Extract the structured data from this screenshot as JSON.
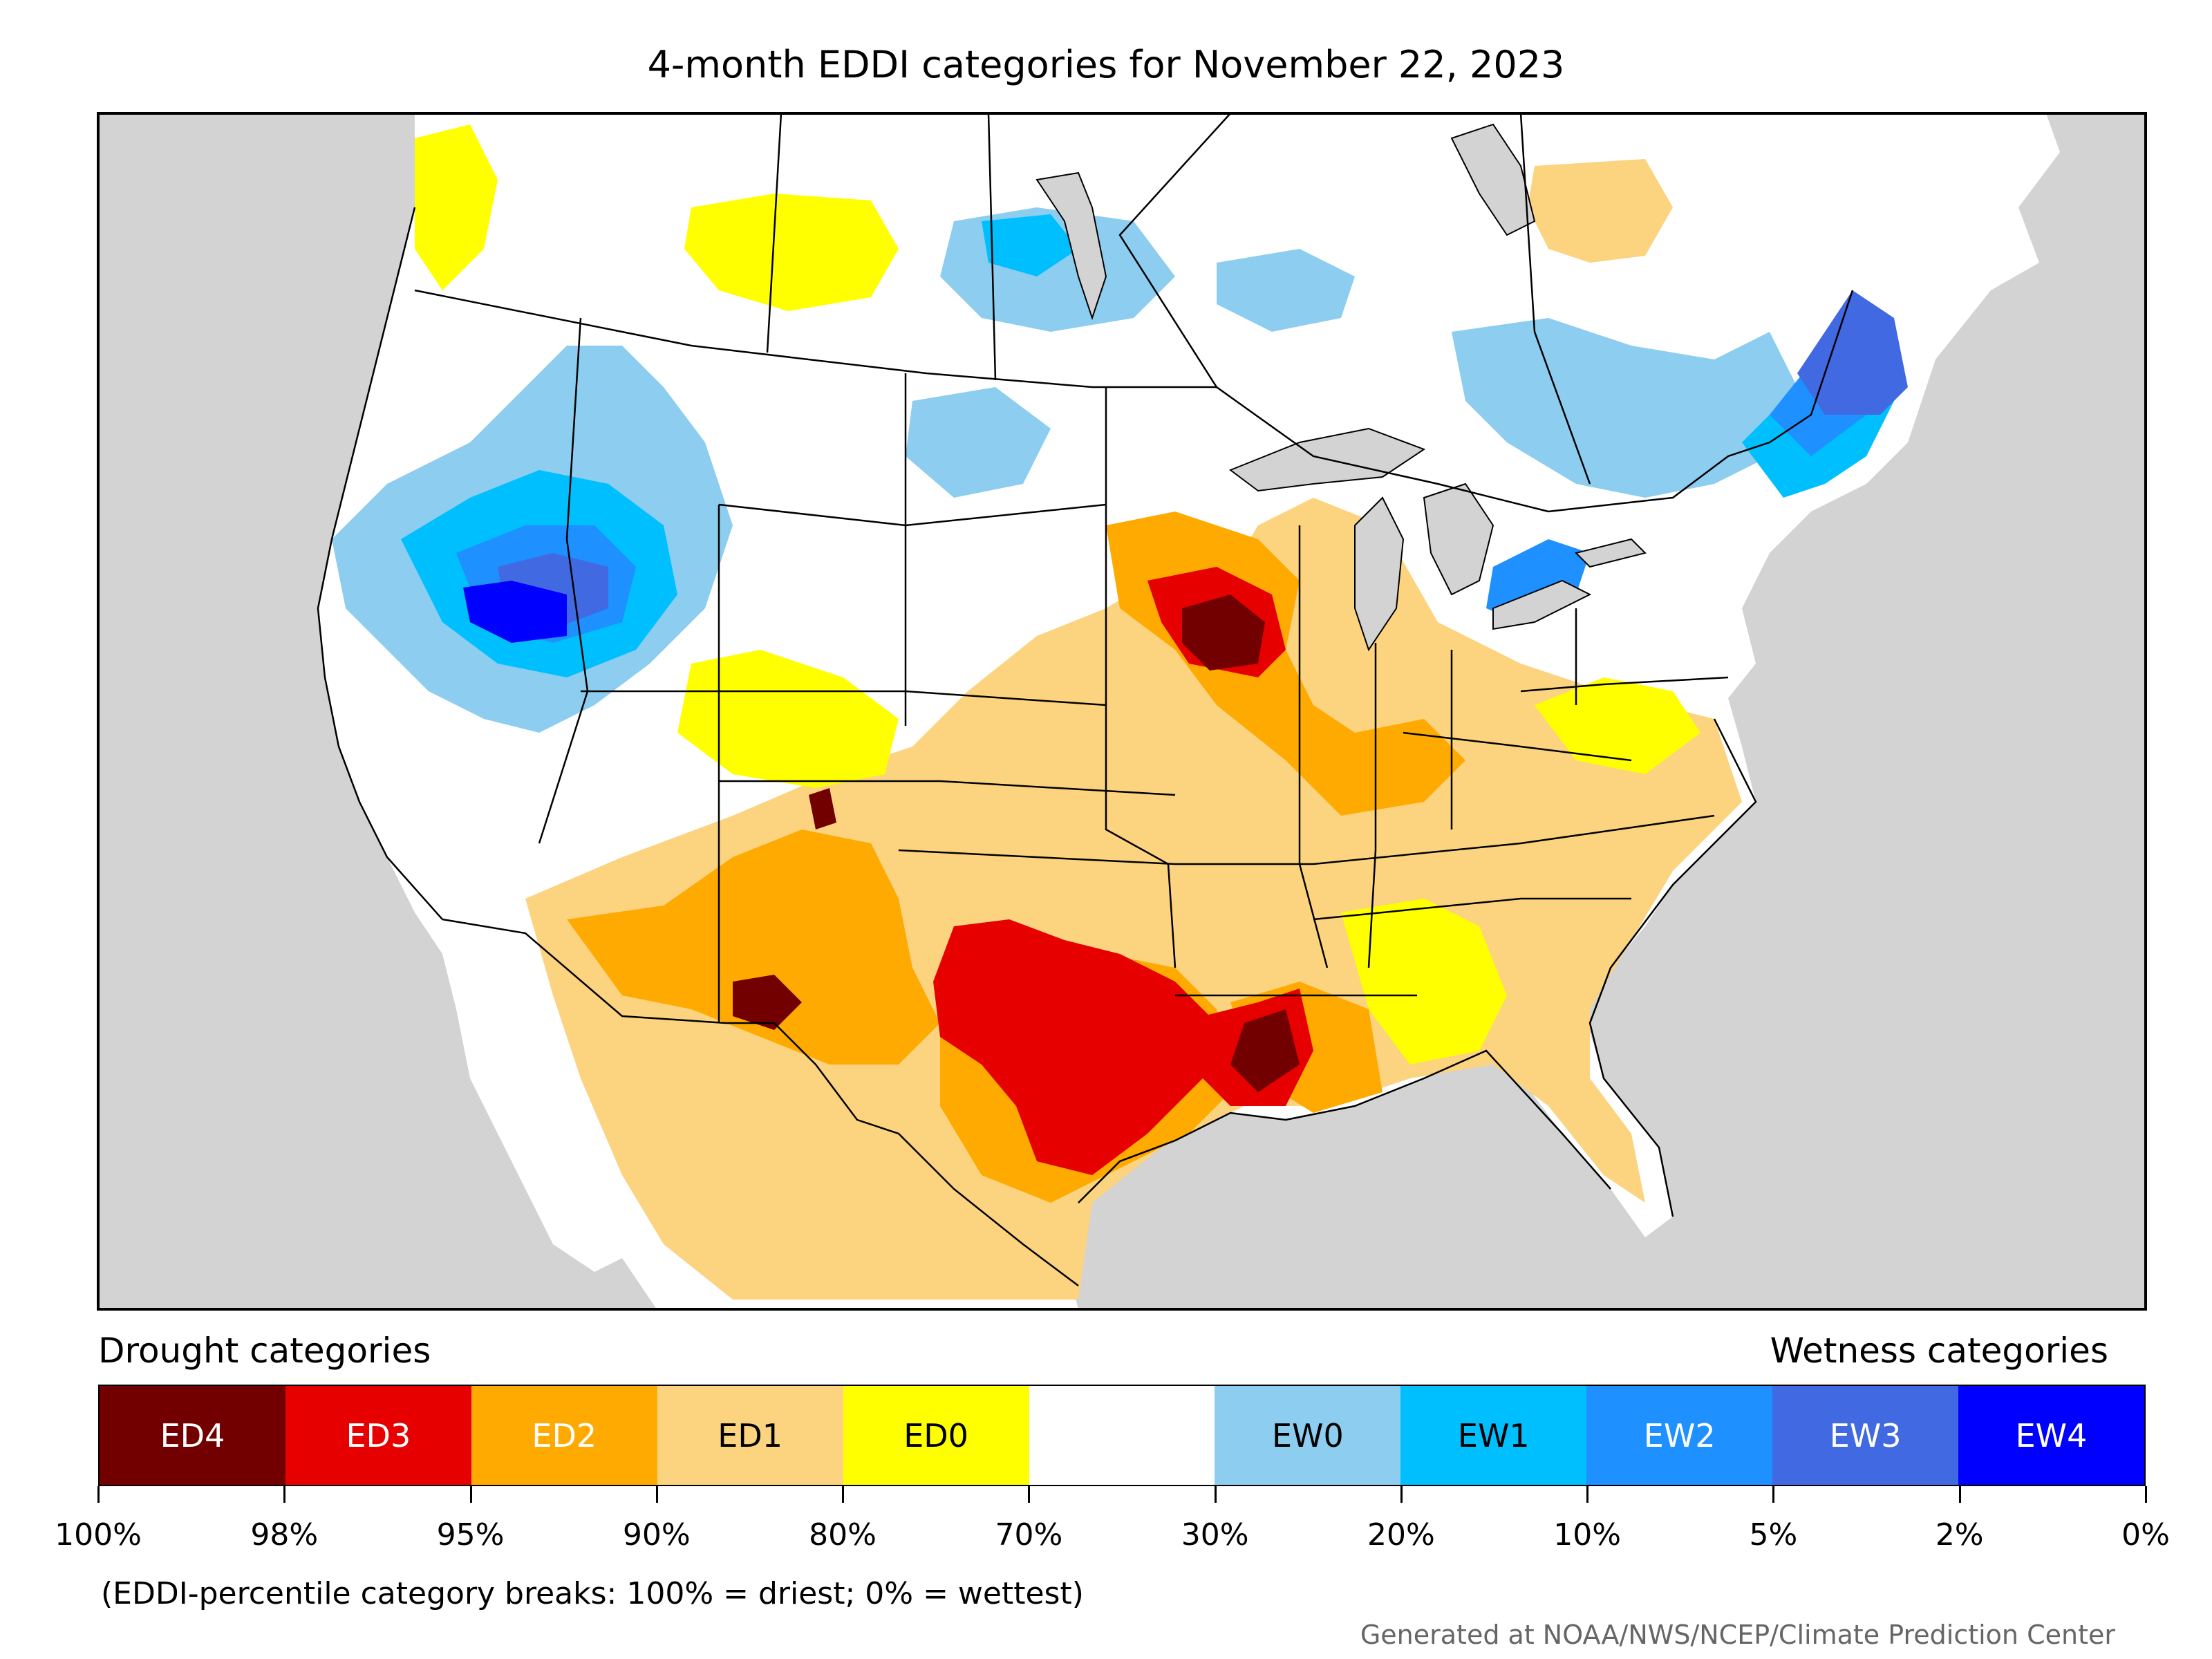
{
  "title": "4-month EDDI categories for November 22, 2023",
  "legend": {
    "left_heading": "Drought categories",
    "right_heading": "Wetness categories",
    "categories": [
      {
        "label": "ED4",
        "color": "#730000",
        "text_color": "#ffffff"
      },
      {
        "label": "ED3",
        "color": "#e60000",
        "text_color": "#ffffff"
      },
      {
        "label": "ED2",
        "color": "#ffaa00",
        "text_color": "#ffffff"
      },
      {
        "label": "ED1",
        "color": "#fcd37f",
        "text_color": "#000000"
      },
      {
        "label": "ED0",
        "color": "#ffff00",
        "text_color": "#000000"
      },
      {
        "label": "",
        "color": "#ffffff",
        "text_color": "#000000"
      },
      {
        "label": "EW0",
        "color": "#8ccdf0",
        "text_color": "#000000"
      },
      {
        "label": "EW1",
        "color": "#00bfff",
        "text_color": "#000000"
      },
      {
        "label": "EW2",
        "color": "#1e90ff",
        "text_color": "#ffffff"
      },
      {
        "label": "EW3",
        "color": "#4169e1",
        "text_color": "#ffffff"
      },
      {
        "label": "EW4",
        "color": "#0000ff",
        "text_color": "#ffffff"
      }
    ],
    "breaks": [
      "100%",
      "98%",
      "95%",
      "90%",
      "80%",
      "70%",
      "30%",
      "20%",
      "10%",
      "5%",
      "2%",
      "0%"
    ]
  },
  "footnote": "(EDDI-percentile category breaks: 100% = driest; 0% = wettest)",
  "credit": "Generated at NOAA/NWS/NCEP/Climate Prediction Center",
  "colors": {
    "ocean": "#d3d3d3",
    "land": "#ffffff",
    "boundary": "#000000"
  }
}
